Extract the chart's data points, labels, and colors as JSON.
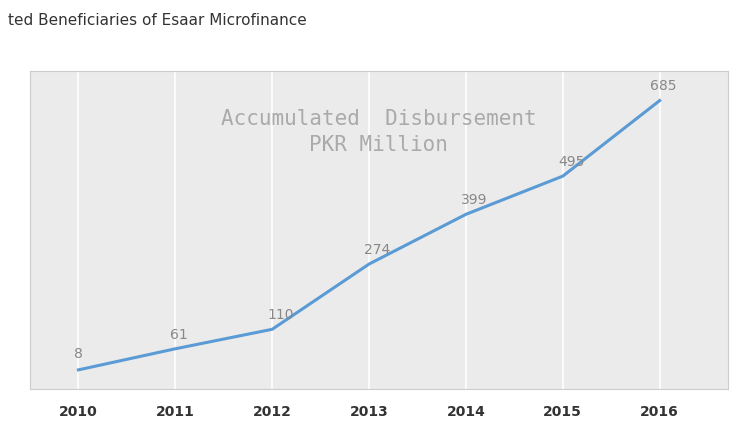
{
  "years": [
    2010,
    2011,
    2012,
    2013,
    2014,
    2015,
    2016
  ],
  "values": [
    8,
    61,
    110,
    274,
    399,
    495,
    685
  ],
  "title_line1": "Accumulated  Disbursement",
  "title_line2": "PKR Million",
  "title_color": "#aaaaaa",
  "line_color": "#5b9bd5",
  "label_color": "#888888",
  "background_color": "#ebebeb",
  "outer_background": "#ffffff",
  "grid_color": "#ffffff",
  "box_edge_color": "#cccccc",
  "caption_text": "ted Beneficiaries of Esaar Microfinance",
  "caption_color": "#333333",
  "caption_fontsize": 11,
  "title_fontsize": 15,
  "label_fontsize": 10,
  "tick_fontsize": 10,
  "xlim": [
    2009.5,
    2016.7
  ],
  "ylim": [
    -40,
    760
  ]
}
